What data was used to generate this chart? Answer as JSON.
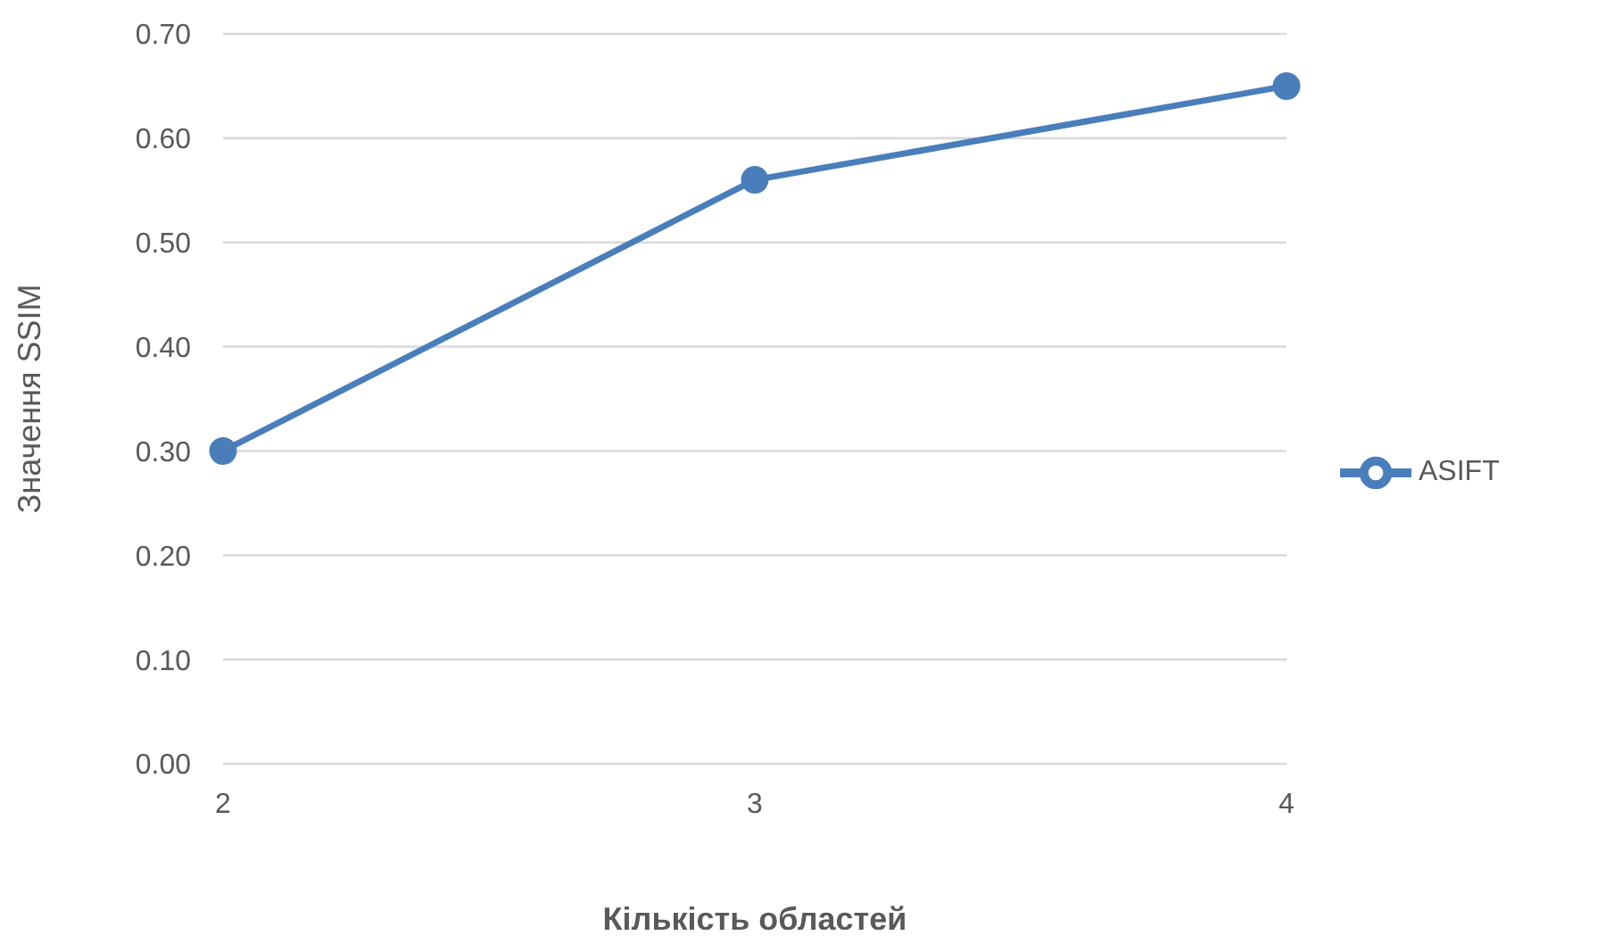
{
  "chart_data": {
    "type": "line",
    "xlabel": "Кількість областей",
    "ylabel": "Значення SSIM",
    "categories": [
      "2",
      "3",
      "4"
    ],
    "series": [
      {
        "name": "ASIFT",
        "color": "#4a7ebb",
        "values": [
          0.3,
          0.56,
          0.65
        ]
      }
    ],
    "ylim": [
      0,
      0.7
    ],
    "yticks": [
      {
        "value": 0,
        "label": "0.00"
      },
      {
        "value": 0.1,
        "label": "0.10"
      },
      {
        "value": 0.2,
        "label": "0.20"
      },
      {
        "value": 0.3,
        "label": "0.30"
      },
      {
        "value": 0.4,
        "label": "0.40"
      },
      {
        "value": 0.5,
        "label": "0.50"
      },
      {
        "value": 0.6,
        "label": "0.60"
      },
      {
        "value": 0.7,
        "label": "0.70"
      }
    ],
    "grid": "y",
    "legend": "right",
    "marker": "circle",
    "line_style": "solid"
  }
}
